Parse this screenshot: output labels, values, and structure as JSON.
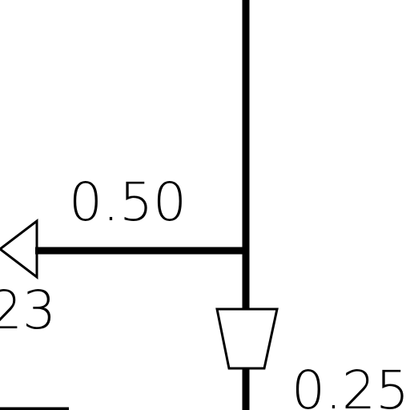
{
  "diagram": {
    "labels": {
      "horizontal_branch_value": "0.50",
      "left_fragment_value": "23",
      "vertical_branch_value": "0.25"
    },
    "colors": {
      "line": "#000000",
      "background": "#ffffff"
    }
  }
}
